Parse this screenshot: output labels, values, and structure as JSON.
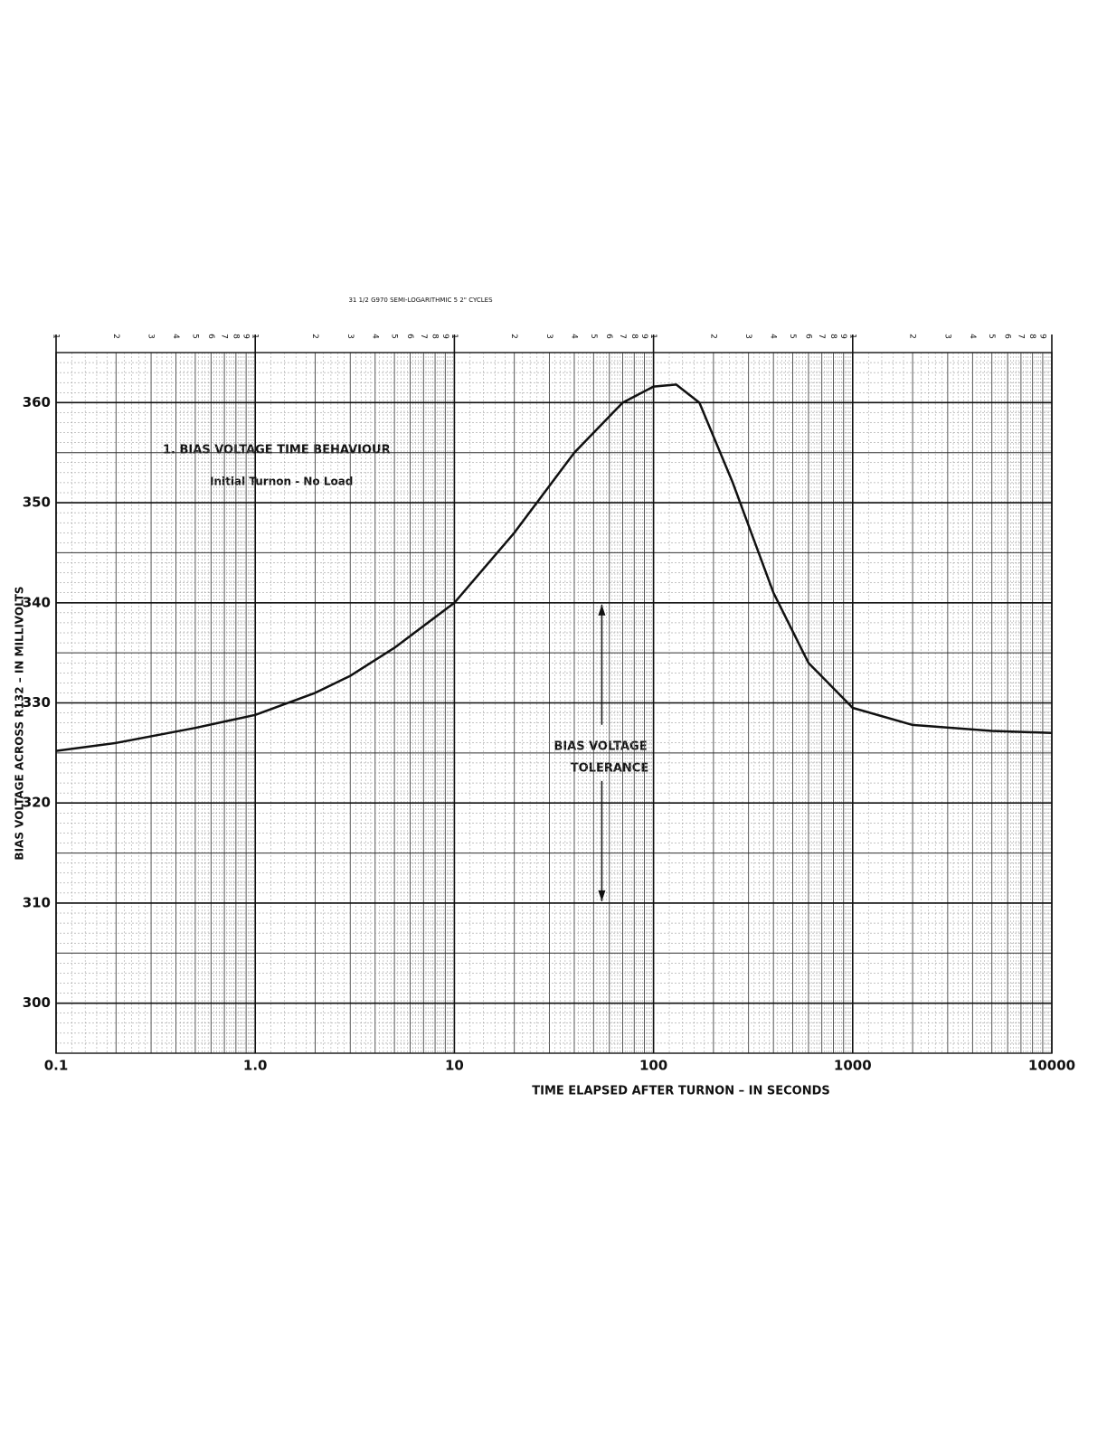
{
  "chart_data": {
    "type": "line",
    "paper_caption": "31 1/2 G970 SEMI-LOGARITHMIC 5 2\" CYCLES",
    "title": "1.   BIAS VOLTAGE TIME BEHAVIOUR",
    "subtitle": "Initial Turnon - No Load",
    "annotations": [
      "BIAS VOLTAGE",
      "TOLERANCE"
    ],
    "tolerance_range": [
      310,
      340
    ],
    "tolerance_x": 55,
    "x_label": "TIME  ELAPSED  AFTER  TURNON – IN  SECONDS",
    "y_label": "BIAS   VOLTAGE   ACROSS   R132 – IN  MILLIVOLTS",
    "x": [
      0.1,
      0.2,
      0.5,
      1,
      2,
      3,
      5,
      10,
      20,
      40,
      70,
      100,
      130,
      170,
      250,
      400,
      600,
      1000,
      2000,
      5000,
      10000
    ],
    "values": [
      325.2,
      326,
      327.5,
      328.8,
      331,
      332.7,
      335.5,
      340,
      347,
      355,
      360,
      361.6,
      361.8,
      360,
      352,
      341,
      334,
      329.5,
      327.8,
      327.2,
      327
    ],
    "color": "#111111",
    "x_log": true,
    "xlim": [
      0.1,
      10000
    ],
    "xticks": [
      0.1,
      {
        "value": 1,
        "label": "1.0"
      },
      10,
      100,
      1000,
      10000
    ],
    "ylim": [
      295,
      365
    ],
    "yticks": [
      300,
      310,
      320,
      330,
      340,
      350,
      360
    ],
    "top_cycle_labels": [
      1,
      2,
      3,
      4,
      5,
      6,
      7,
      8,
      9
    ],
    "grid": true
  }
}
